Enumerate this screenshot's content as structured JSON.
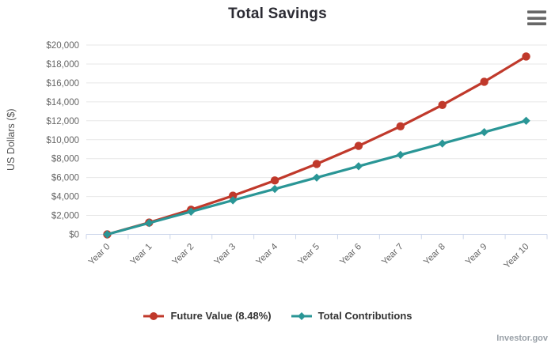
{
  "header": {
    "menu_icon": "hamburger-menu"
  },
  "watermark": "Investor.gov",
  "chart_data": {
    "type": "line",
    "title": "Total Savings",
    "xlabel": "",
    "ylabel": "US Dollars ($)",
    "categories": [
      "Year 0",
      "Year 1",
      "Year 2",
      "Year 3",
      "Year 4",
      "Year 5",
      "Year 6",
      "Year 7",
      "Year 8",
      "Year 9",
      "Year 10"
    ],
    "series": [
      {
        "name": "Future Value (8.48%)",
        "color": "#c0392b",
        "marker": "circle",
        "values": [
          0,
          1248,
          2605,
          4083,
          5691,
          7440,
          9344,
          11416,
          13670,
          16123,
          18793
        ]
      },
      {
        "name": "Total Contributions",
        "color": "#2a9696",
        "marker": "diamond",
        "values": [
          0,
          1200,
          2400,
          3600,
          4800,
          6000,
          7200,
          8400,
          9600,
          10800,
          12000
        ]
      }
    ],
    "ylim": [
      0,
      20000
    ],
    "ytick_step": 2000,
    "ytick_prefix": "$",
    "grid": true,
    "legend_position": "bottom",
    "axis_line_color": "#ccd6eb",
    "grid_color": "#e7e7e7",
    "tick_label_color": "#666666",
    "axis_title_color": "#555555"
  }
}
